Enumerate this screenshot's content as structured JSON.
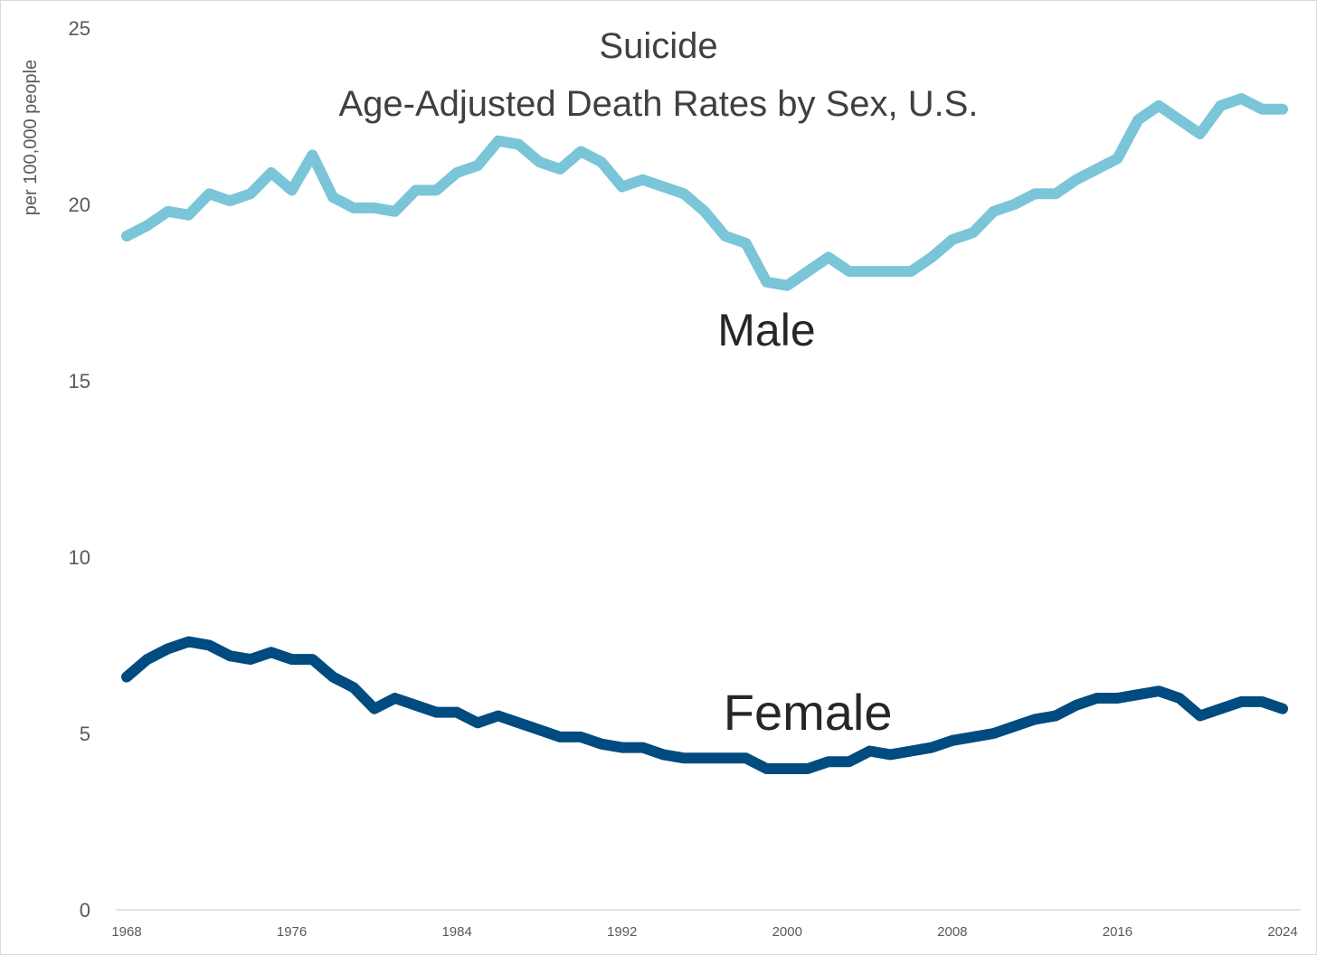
{
  "chart_data": {
    "type": "line",
    "title": "Suicide",
    "subtitle": "Age-Adjusted Death Rates by Sex, U.S.",
    "xlabel": "",
    "ylabel": "per 100,000 people",
    "xlim": [
      1968,
      2024
    ],
    "ylim": [
      0,
      25
    ],
    "yticks": [
      0,
      5,
      10,
      15,
      20,
      25
    ],
    "xticks": [
      1968,
      1976,
      1984,
      1992,
      2000,
      2008,
      2016,
      2024
    ],
    "grid": false,
    "legend": "none",
    "x": [
      1968,
      1969,
      1970,
      1971,
      1972,
      1973,
      1974,
      1975,
      1976,
      1977,
      1978,
      1979,
      1980,
      1981,
      1982,
      1983,
      1984,
      1985,
      1986,
      1987,
      1988,
      1989,
      1990,
      1991,
      1992,
      1993,
      1994,
      1995,
      1996,
      1997,
      1998,
      1999,
      2000,
      2001,
      2002,
      2003,
      2004,
      2005,
      2006,
      2007,
      2008,
      2009,
      2010,
      2011,
      2012,
      2013,
      2014,
      2015,
      2016,
      2017,
      2018,
      2019,
      2020,
      2021,
      2022,
      2023,
      2024
    ],
    "series": [
      {
        "name": "Male",
        "color": "#7ac5d8",
        "label_at": [
          1999,
          16.0
        ],
        "values": [
          19.1,
          19.4,
          19.8,
          19.7,
          20.3,
          20.1,
          20.3,
          20.9,
          20.4,
          21.4,
          20.2,
          19.9,
          19.9,
          19.8,
          20.4,
          20.4,
          20.9,
          21.1,
          21.8,
          21.7,
          21.2,
          21.0,
          21.5,
          21.2,
          20.5,
          20.7,
          20.5,
          20.3,
          19.8,
          19.1,
          18.9,
          17.8,
          17.7,
          18.1,
          18.5,
          18.1,
          18.1,
          18.1,
          18.1,
          18.5,
          19.0,
          19.2,
          19.8,
          20.0,
          20.3,
          20.3,
          20.7,
          21.0,
          21.3,
          22.4,
          22.8,
          22.4,
          22.0,
          22.8,
          23.0,
          22.7,
          22.7
        ]
      },
      {
        "name": "Female",
        "color": "#004b7f",
        "label_at": [
          2001,
          5.1
        ],
        "values": [
          6.6,
          7.1,
          7.4,
          7.6,
          7.5,
          7.2,
          7.1,
          7.3,
          7.1,
          7.1,
          6.6,
          6.3,
          5.7,
          6.0,
          5.8,
          5.6,
          5.6,
          5.3,
          5.5,
          5.3,
          5.1,
          4.9,
          4.9,
          4.7,
          4.6,
          4.6,
          4.4,
          4.3,
          4.3,
          4.3,
          4.3,
          4.0,
          4.0,
          4.0,
          4.2,
          4.2,
          4.5,
          4.4,
          4.5,
          4.6,
          4.8,
          4.9,
          5.0,
          5.2,
          5.4,
          5.5,
          5.8,
          6.0,
          6.0,
          6.1,
          6.2,
          6.0,
          5.5,
          5.7,
          5.9,
          5.9,
          5.7
        ]
      }
    ]
  }
}
